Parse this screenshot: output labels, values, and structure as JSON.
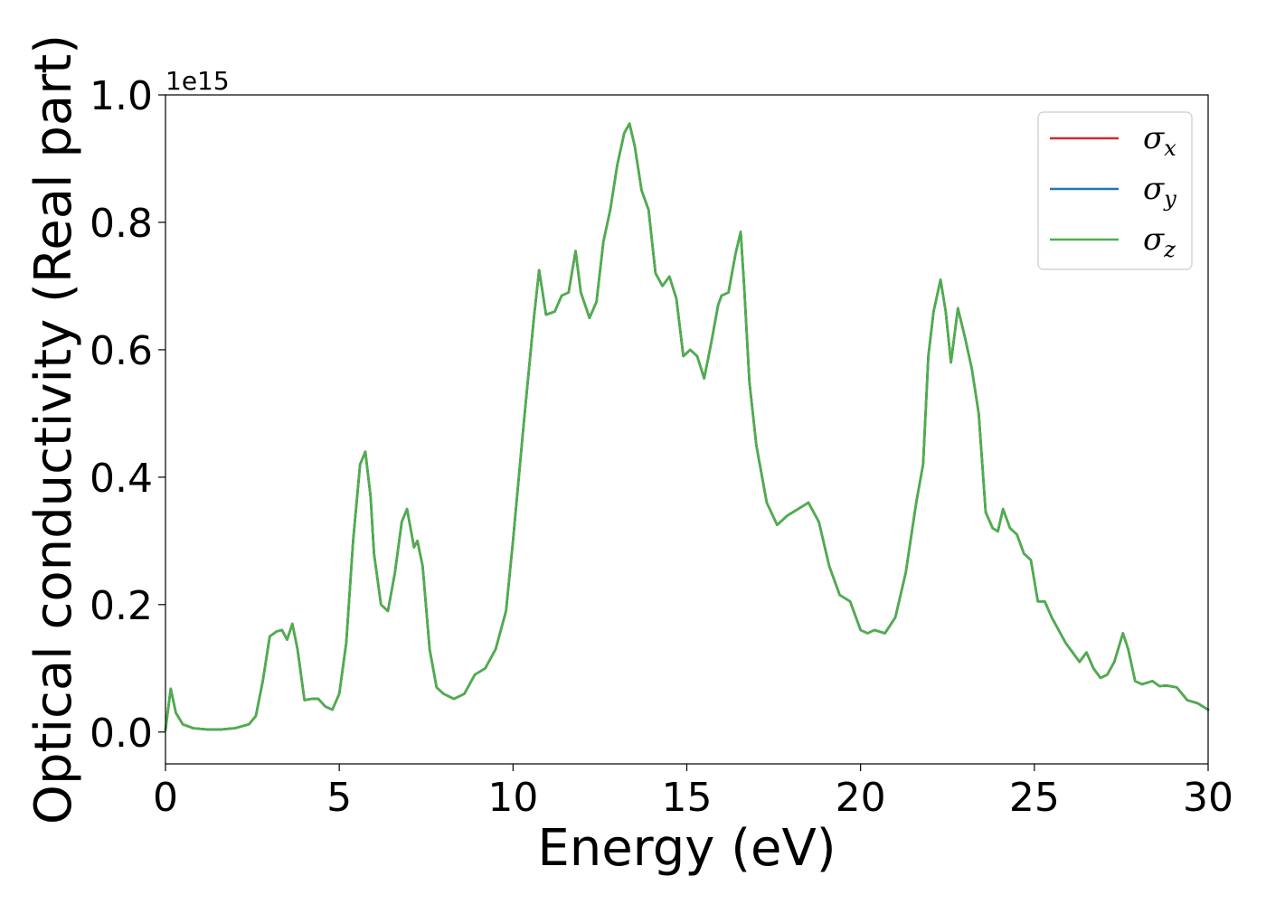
{
  "chart_data": {
    "type": "line",
    "title": "",
    "xlabel": "Energy (eV)",
    "ylabel": "Optical conductivity (Real part)",
    "y_offset_label": "1e15",
    "xlim": [
      0,
      30
    ],
    "ylim": [
      -0.05,
      1.0
    ],
    "xticks": [
      "0",
      "5",
      "10",
      "15",
      "20",
      "25",
      "30"
    ],
    "yticks": [
      "0.0",
      "0.2",
      "0.4",
      "0.6",
      "0.8",
      "1.0"
    ],
    "grid": false,
    "legend_position": "top-right",
    "legend": [
      {
        "symbol": "σ",
        "sub": "x",
        "color": "#d62728"
      },
      {
        "symbol": "σ",
        "sub": "y",
        "color": "#1f77b4"
      },
      {
        "symbol": "σ",
        "sub": "z",
        "color": "#4daf4a"
      }
    ],
    "x": [
      0,
      0.15,
      0.3,
      0.5,
      0.8,
      1.2,
      1.6,
      2.0,
      2.4,
      2.6,
      2.8,
      3.0,
      3.2,
      3.35,
      3.5,
      3.65,
      3.8,
      4.0,
      4.2,
      4.4,
      4.6,
      4.8,
      5.0,
      5.2,
      5.4,
      5.6,
      5.75,
      5.9,
      6.0,
      6.2,
      6.4,
      6.6,
      6.8,
      6.95,
      7.05,
      7.15,
      7.25,
      7.4,
      7.6,
      7.8,
      8.0,
      8.3,
      8.6,
      8.9,
      9.2,
      9.5,
      9.8,
      10.0,
      10.3,
      10.6,
      10.75,
      10.95,
      11.2,
      11.4,
      11.6,
      11.8,
      11.95,
      12.2,
      12.4,
      12.6,
      12.8,
      13.0,
      13.2,
      13.35,
      13.5,
      13.7,
      13.9,
      14.1,
      14.3,
      14.5,
      14.7,
      14.9,
      15.1,
      15.3,
      15.5,
      15.7,
      15.9,
      16.0,
      16.2,
      16.4,
      16.55,
      16.65,
      16.8,
      17.0,
      17.3,
      17.6,
      17.9,
      18.2,
      18.5,
      18.8,
      19.1,
      19.4,
      19.7,
      20.0,
      20.2,
      20.4,
      20.7,
      21.0,
      21.3,
      21.6,
      21.8,
      21.95,
      22.1,
      22.3,
      22.45,
      22.6,
      22.8,
      23.0,
      23.2,
      23.4,
      23.6,
      23.8,
      23.95,
      24.1,
      24.3,
      24.5,
      24.7,
      24.9,
      25.1,
      25.3,
      25.5,
      25.7,
      25.9,
      26.1,
      26.3,
      26.5,
      26.7,
      26.9,
      27.1,
      27.3,
      27.55,
      27.7,
      27.9,
      28.1,
      28.4,
      28.6,
      28.8,
      29.1,
      29.4,
      29.7,
      30.0
    ],
    "series": [
      {
        "name": "σx",
        "color": "#d62728",
        "values": [
          0.003,
          0.068,
          0.03,
          0.012,
          0.006,
          0.004,
          0.004,
          0.006,
          0.012,
          0.025,
          0.08,
          0.15,
          0.158,
          0.16,
          0.145,
          0.17,
          0.13,
          0.05,
          0.052,
          0.052,
          0.04,
          0.035,
          0.06,
          0.14,
          0.3,
          0.42,
          0.44,
          0.37,
          0.28,
          0.2,
          0.19,
          0.25,
          0.33,
          0.35,
          0.32,
          0.29,
          0.3,
          0.26,
          0.13,
          0.07,
          0.06,
          0.052,
          0.06,
          0.09,
          0.1,
          0.13,
          0.19,
          0.3,
          0.48,
          0.65,
          0.725,
          0.655,
          0.66,
          0.685,
          0.69,
          0.755,
          0.69,
          0.65,
          0.675,
          0.77,
          0.82,
          0.89,
          0.94,
          0.955,
          0.92,
          0.85,
          0.82,
          0.72,
          0.7,
          0.715,
          0.68,
          0.59,
          0.6,
          0.59,
          0.555,
          0.61,
          0.67,
          0.685,
          0.69,
          0.75,
          0.785,
          0.7,
          0.55,
          0.45,
          0.36,
          0.325,
          0.34,
          0.35,
          0.36,
          0.33,
          0.26,
          0.215,
          0.205,
          0.16,
          0.155,
          0.16,
          0.155,
          0.18,
          0.25,
          0.36,
          0.42,
          0.59,
          0.66,
          0.71,
          0.66,
          0.58,
          0.665,
          0.62,
          0.57,
          0.5,
          0.345,
          0.32,
          0.315,
          0.35,
          0.32,
          0.31,
          0.28,
          0.27,
          0.205,
          0.205,
          0.18,
          0.16,
          0.14,
          0.125,
          0.11,
          0.125,
          0.1,
          0.085,
          0.09,
          0.11,
          0.155,
          0.13,
          0.08,
          0.075,
          0.08,
          0.072,
          0.073,
          0.07,
          0.05,
          0.045,
          0.035
        ]
      },
      {
        "name": "σy",
        "color": "#1f77b4",
        "values": [
          0.003,
          0.068,
          0.03,
          0.012,
          0.006,
          0.004,
          0.004,
          0.006,
          0.012,
          0.025,
          0.08,
          0.15,
          0.158,
          0.16,
          0.145,
          0.17,
          0.13,
          0.05,
          0.052,
          0.052,
          0.04,
          0.035,
          0.06,
          0.14,
          0.3,
          0.42,
          0.44,
          0.37,
          0.28,
          0.2,
          0.19,
          0.25,
          0.33,
          0.35,
          0.32,
          0.29,
          0.3,
          0.26,
          0.13,
          0.07,
          0.06,
          0.052,
          0.06,
          0.09,
          0.1,
          0.13,
          0.19,
          0.3,
          0.48,
          0.65,
          0.725,
          0.655,
          0.66,
          0.685,
          0.69,
          0.755,
          0.69,
          0.65,
          0.675,
          0.77,
          0.82,
          0.89,
          0.94,
          0.955,
          0.92,
          0.85,
          0.82,
          0.72,
          0.7,
          0.715,
          0.68,
          0.59,
          0.6,
          0.59,
          0.555,
          0.61,
          0.67,
          0.685,
          0.69,
          0.75,
          0.785,
          0.7,
          0.55,
          0.45,
          0.36,
          0.325,
          0.34,
          0.35,
          0.36,
          0.33,
          0.26,
          0.215,
          0.205,
          0.16,
          0.155,
          0.16,
          0.155,
          0.18,
          0.25,
          0.36,
          0.42,
          0.59,
          0.66,
          0.71,
          0.66,
          0.58,
          0.665,
          0.62,
          0.57,
          0.5,
          0.345,
          0.32,
          0.315,
          0.35,
          0.32,
          0.31,
          0.28,
          0.27,
          0.205,
          0.205,
          0.18,
          0.16,
          0.14,
          0.125,
          0.11,
          0.125,
          0.1,
          0.085,
          0.09,
          0.11,
          0.155,
          0.13,
          0.08,
          0.075,
          0.08,
          0.072,
          0.073,
          0.07,
          0.05,
          0.045,
          0.035
        ]
      },
      {
        "name": "σz",
        "color": "#4daf4a",
        "values": [
          0.003,
          0.068,
          0.03,
          0.012,
          0.006,
          0.004,
          0.004,
          0.006,
          0.012,
          0.025,
          0.08,
          0.15,
          0.158,
          0.16,
          0.145,
          0.17,
          0.13,
          0.05,
          0.052,
          0.052,
          0.04,
          0.035,
          0.06,
          0.14,
          0.3,
          0.42,
          0.44,
          0.37,
          0.28,
          0.2,
          0.19,
          0.25,
          0.33,
          0.35,
          0.32,
          0.29,
          0.3,
          0.26,
          0.13,
          0.07,
          0.06,
          0.052,
          0.06,
          0.09,
          0.1,
          0.13,
          0.19,
          0.3,
          0.48,
          0.65,
          0.725,
          0.655,
          0.66,
          0.685,
          0.69,
          0.755,
          0.69,
          0.65,
          0.675,
          0.77,
          0.82,
          0.89,
          0.94,
          0.955,
          0.92,
          0.85,
          0.82,
          0.72,
          0.7,
          0.715,
          0.68,
          0.59,
          0.6,
          0.59,
          0.555,
          0.61,
          0.67,
          0.685,
          0.69,
          0.75,
          0.785,
          0.7,
          0.55,
          0.45,
          0.36,
          0.325,
          0.34,
          0.35,
          0.36,
          0.33,
          0.26,
          0.215,
          0.205,
          0.16,
          0.155,
          0.16,
          0.155,
          0.18,
          0.25,
          0.36,
          0.42,
          0.59,
          0.66,
          0.71,
          0.66,
          0.58,
          0.665,
          0.62,
          0.57,
          0.5,
          0.345,
          0.32,
          0.315,
          0.35,
          0.32,
          0.31,
          0.28,
          0.27,
          0.205,
          0.205,
          0.18,
          0.16,
          0.14,
          0.125,
          0.11,
          0.125,
          0.1,
          0.085,
          0.09,
          0.11,
          0.155,
          0.13,
          0.08,
          0.075,
          0.08,
          0.072,
          0.073,
          0.07,
          0.05,
          0.045,
          0.035
        ]
      }
    ]
  }
}
